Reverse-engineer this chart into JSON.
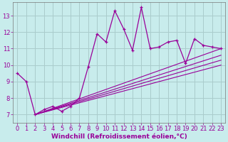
{
  "xlabel": "Windchill (Refroidissement éolien,°C)",
  "bg_color": "#c8ecec",
  "line_color": "#990099",
  "grid_color": "#aacccc",
  "xlim": [
    -0.5,
    23.5
  ],
  "ylim": [
    6.5,
    13.8
  ],
  "xticks": [
    0,
    1,
    2,
    3,
    4,
    5,
    6,
    7,
    8,
    9,
    10,
    11,
    12,
    13,
    14,
    15,
    16,
    17,
    18,
    19,
    20,
    21,
    22,
    23
  ],
  "yticks": [
    7,
    8,
    9,
    10,
    11,
    12,
    13
  ],
  "main_x": [
    0,
    1,
    2,
    3,
    4,
    5,
    6,
    7,
    8,
    9,
    10,
    11,
    12,
    13,
    14,
    15,
    16,
    17,
    18,
    19,
    20,
    21,
    22,
    23
  ],
  "main_y": [
    9.5,
    9.0,
    7.0,
    7.3,
    7.5,
    7.2,
    7.5,
    8.0,
    9.9,
    11.9,
    11.4,
    13.3,
    12.2,
    10.9,
    13.5,
    11.0,
    11.1,
    11.4,
    11.5,
    10.1,
    11.6,
    11.2,
    11.1,
    11.0
  ],
  "trend_lines": [
    {
      "x": [
        2,
        23
      ],
      "y": [
        7.0,
        11.0
      ]
    },
    {
      "x": [
        2,
        23
      ],
      "y": [
        7.0,
        10.6
      ]
    },
    {
      "x": [
        2,
        23
      ],
      "y": [
        7.0,
        10.3
      ]
    },
    {
      "x": [
        2,
        23
      ],
      "y": [
        7.0,
        10.0
      ]
    }
  ],
  "xlabel_fontsize": 6.5,
  "tick_fontsize": 6.0
}
